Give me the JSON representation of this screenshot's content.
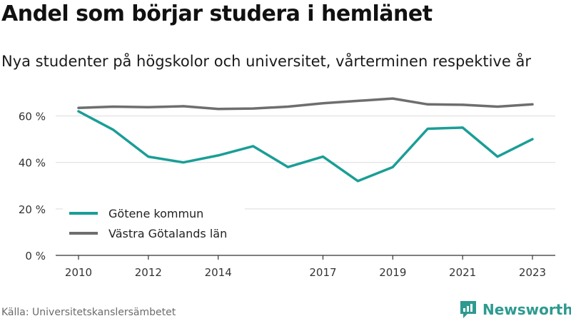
{
  "title": "Andel som börjar studera i hemlänet",
  "subtitle": "Nya studenter på högskolor och universitet, vårterminen respektive år",
  "source": "Källa: Universitetskanslersämbetet",
  "brand": {
    "name": "Newsworthy",
    "icon": "newsworthy-logo-icon",
    "color": "#2e9a90"
  },
  "chart_data": {
    "type": "line",
    "title": "Andel som börjar studera i hemlänet",
    "subtitle": "Nya studenter på högskolor och universitet, vårterminen respektive år",
    "x": [
      2010,
      2011,
      2012,
      2013,
      2014,
      2015,
      2016,
      2017,
      2018,
      2019,
      2020,
      2021,
      2022,
      2023
    ],
    "x_ticks": [
      2010,
      2012,
      2014,
      2017,
      2019,
      2021,
      2023
    ],
    "y_ticks": [
      0,
      20,
      40,
      60
    ],
    "y_tick_labels": [
      "0 %",
      "20 %",
      "40 %",
      "60 %"
    ],
    "ylim": [
      0,
      70
    ],
    "xlim": [
      2010,
      2023
    ],
    "xlabel": "",
    "ylabel": "",
    "grid": true,
    "legend_position": "bottom-left",
    "series": [
      {
        "name": "Götene kommun",
        "color": "#1a9e96",
        "values": [
          62,
          54,
          42.5,
          40,
          43,
          47,
          38,
          42.5,
          32,
          38,
          54.5,
          55,
          42.5,
          50
        ]
      },
      {
        "name": "Västra Götalands län",
        "color": "#6e6e6e",
        "values": [
          63.5,
          64,
          63.8,
          64.2,
          63,
          63.2,
          64,
          65.5,
          66.5,
          67.5,
          65,
          64.8,
          64,
          65
        ]
      }
    ]
  }
}
